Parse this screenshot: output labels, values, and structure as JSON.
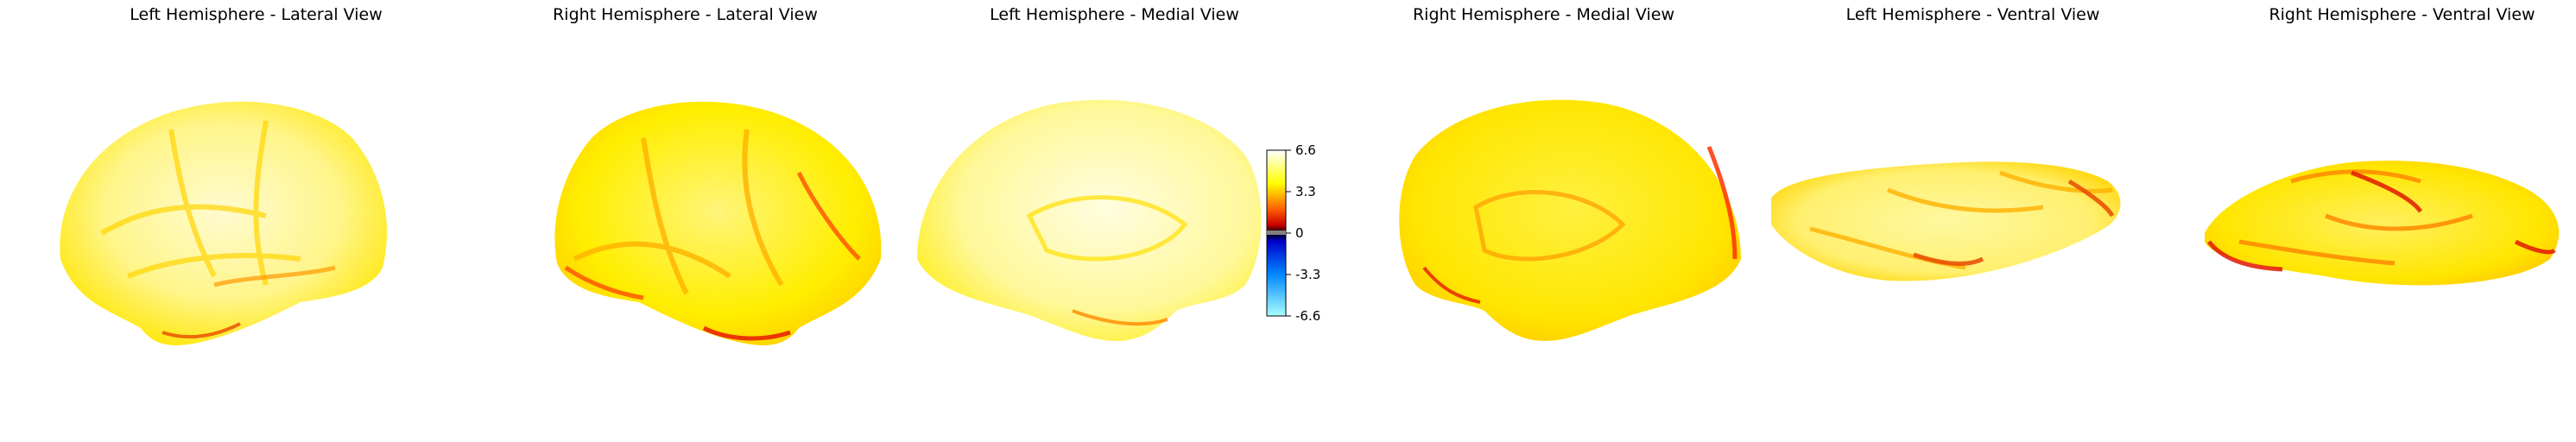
{
  "panels": [
    {
      "title": "Left Hemisphere - Lateral View"
    },
    {
      "title": "Right Hemisphere - Lateral View"
    },
    {
      "title": "Left Hemisphere - Medial View"
    },
    {
      "title": "Right Hemisphere - Medial View"
    },
    {
      "title": "Left Hemisphere - Ventral View"
    },
    {
      "title": "Right Hemisphere - Ventral View"
    }
  ],
  "colorbar": {
    "ticks": [
      "6.6",
      "3.3",
      "0",
      "-3.3",
      "-6.6"
    ],
    "colormap": [
      "#ffffff",
      "#ffff00",
      "#ff0000",
      "#000000",
      "#0000ff",
      "#00ffff"
    ]
  },
  "colors": {
    "base": "#ffee00",
    "pale": "#fffbb0",
    "hot": "#ff5a00",
    "red": "#e61a00"
  }
}
